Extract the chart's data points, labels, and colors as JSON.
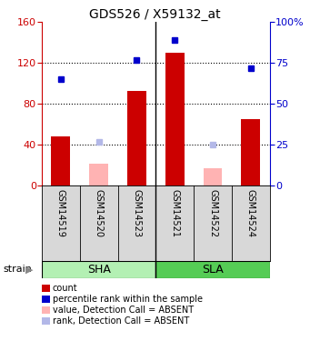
{
  "title": "GDS526 / X59132_at",
  "samples": [
    "GSM14519",
    "GSM14520",
    "GSM14523",
    "GSM14521",
    "GSM14522",
    "GSM14524"
  ],
  "groups": [
    {
      "name": "SHA",
      "indices": [
        0,
        1,
        2
      ],
      "color": "#b3f0b3"
    },
    {
      "name": "SLA",
      "indices": [
        3,
        4,
        5
      ],
      "color": "#55cc55"
    }
  ],
  "red_bars": [
    48,
    0,
    93,
    130,
    0,
    65
  ],
  "blue_squares": [
    65,
    0,
    77,
    89,
    0,
    72
  ],
  "pink_bars": [
    0,
    22,
    0,
    0,
    17,
    0
  ],
  "light_blue_squares": [
    0,
    27,
    0,
    0,
    25,
    0
  ],
  "left_ylim": [
    0,
    160
  ],
  "left_yticks": [
    0,
    40,
    80,
    120,
    160
  ],
  "right_ylim": [
    0,
    100
  ],
  "right_yticks": [
    0,
    25,
    50,
    75,
    100
  ],
  "right_yticklabels": [
    "0",
    "25",
    "50",
    "75",
    "100%"
  ],
  "left_axis_color": "#cc0000",
  "right_axis_color": "#0000cc",
  "bar_width": 0.5,
  "group_divider": 2.5,
  "legend_items": [
    {
      "label": "count",
      "color": "#cc0000"
    },
    {
      "label": "percentile rank within the sample",
      "color": "#0000cc"
    },
    {
      "label": "value, Detection Call = ABSENT",
      "color": "#ffb3b3"
    },
    {
      "label": "rank, Detection Call = ABSENT",
      "color": "#b3b8e8"
    }
  ],
  "gridline_ticks": [
    40,
    80,
    120
  ]
}
